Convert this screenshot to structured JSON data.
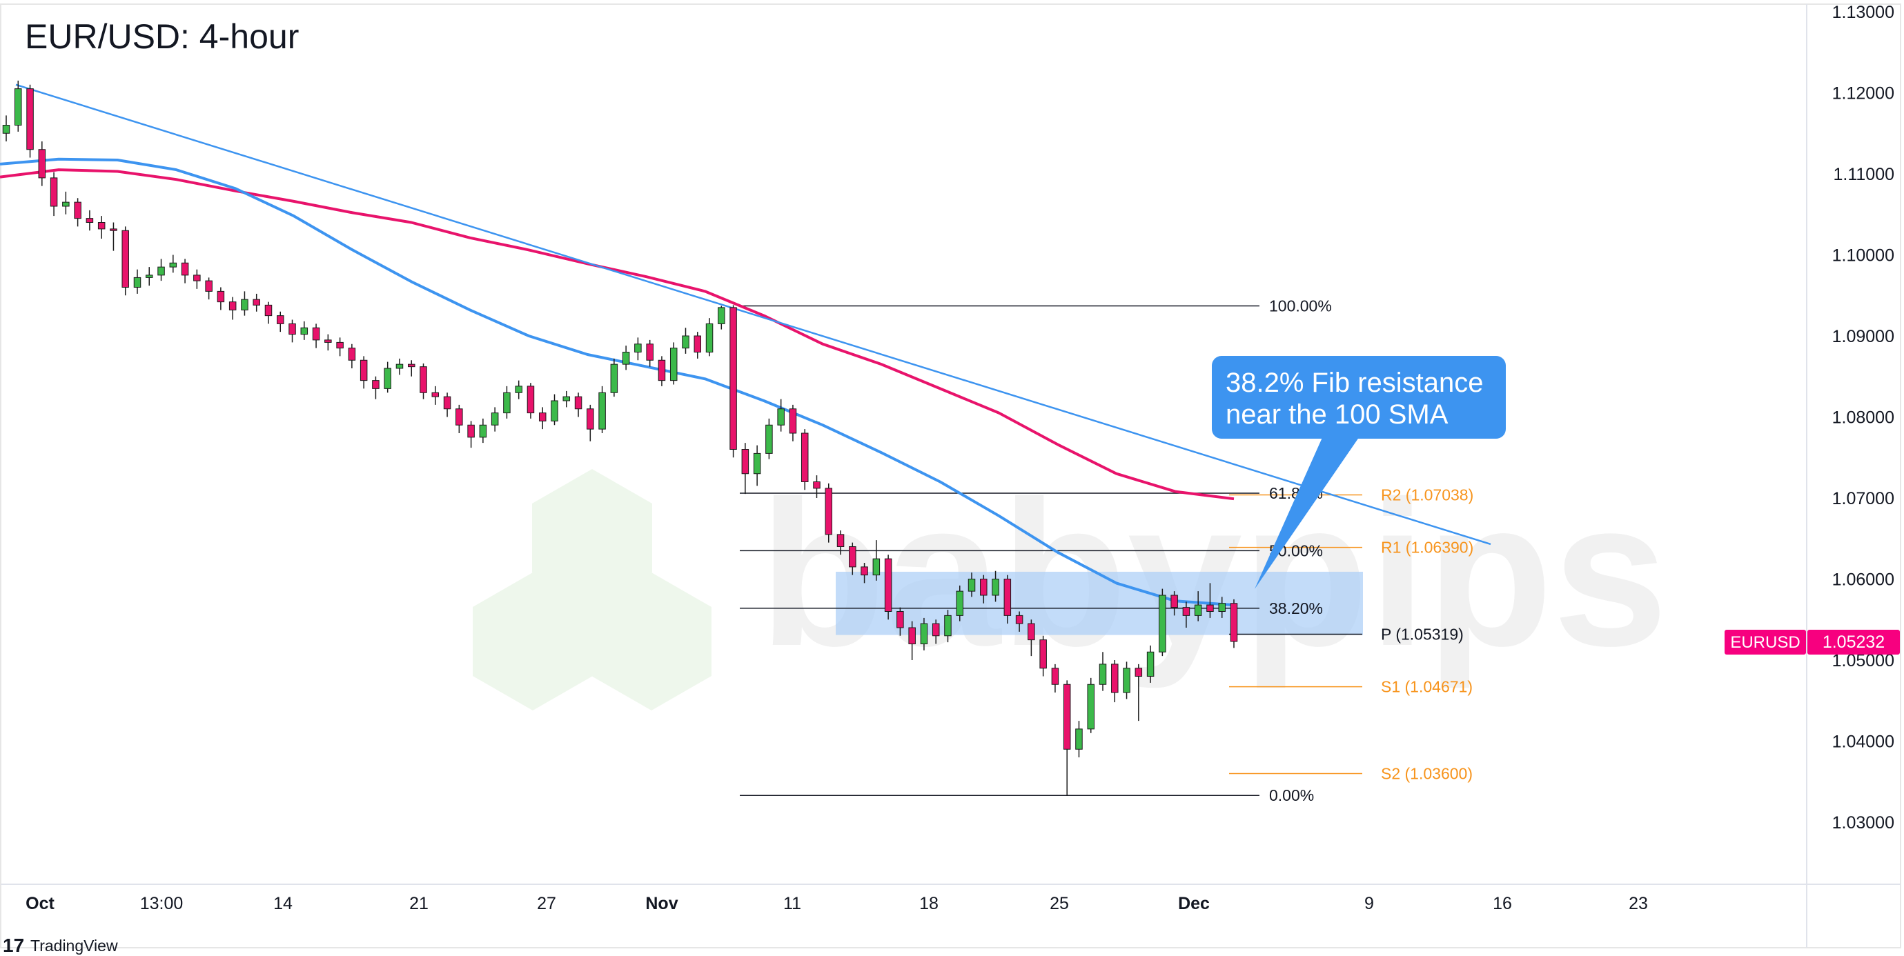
{
  "title": "EUR/USD: 4-hour",
  "watermark": "babypips",
  "branding": "TradingView",
  "chart_data": {
    "type": "candlestick",
    "symbol": "EURUSD",
    "last_price": "1.05232",
    "ylim": [
      1.025,
      1.131
    ],
    "y_ticks": [
      "1.13000",
      "1.12000",
      "1.11000",
      "1.10000",
      "1.09000",
      "1.08000",
      "1.07000",
      "1.06000",
      "1.05000",
      "1.04000",
      "1.03000"
    ],
    "x_ticks": [
      "Oct",
      "13:00",
      "14",
      "21",
      "27",
      "Nov",
      "11",
      "18",
      "25",
      "Dec",
      "9",
      "16",
      "23"
    ],
    "x_ticks_bold": [
      "Oct",
      "Nov",
      "Dec"
    ],
    "colors": {
      "up": "#3cb94a",
      "down": "#e8136b",
      "sma100": "#3d94f0",
      "sma200": "#e8136b",
      "trendline": "#3d94f0",
      "pivot": "#f7941d",
      "zone": "#a9cdf7",
      "price_label": "#f7007f"
    },
    "candles_ohlc": [
      [
        1.115,
        1.1172,
        1.114,
        1.116
      ],
      [
        1.116,
        1.1215,
        1.1152,
        1.1205
      ],
      [
        1.1205,
        1.121,
        1.112,
        1.113
      ],
      [
        1.113,
        1.114,
        1.1085,
        1.1095
      ],
      [
        1.1095,
        1.1102,
        1.1048,
        1.106
      ],
      [
        1.106,
        1.1078,
        1.105,
        1.1065
      ],
      [
        1.1065,
        1.107,
        1.1035,
        1.1045
      ],
      [
        1.1045,
        1.1055,
        1.103,
        1.104
      ],
      [
        1.104,
        1.1048,
        1.102,
        1.1032
      ],
      [
        1.1032,
        1.104,
        1.1005,
        1.103
      ],
      [
        1.103,
        1.1035,
        1.095,
        1.096
      ],
      [
        1.096,
        1.0982,
        1.0952,
        1.0972
      ],
      [
        1.0972,
        1.0985,
        1.0962,
        1.0975
      ],
      [
        1.0975,
        1.0995,
        1.0968,
        1.0985
      ],
      [
        1.0985,
        1.1,
        1.0978,
        1.099
      ],
      [
        1.099,
        1.0995,
        1.0965,
        1.0975
      ],
      [
        1.0975,
        1.0982,
        1.0958,
        1.0968
      ],
      [
        1.0968,
        1.0972,
        1.0945,
        1.0955
      ],
      [
        1.0955,
        1.096,
        1.0932,
        1.0942
      ],
      [
        1.0942,
        1.0948,
        1.092,
        1.0932
      ],
      [
        1.0932,
        1.0955,
        1.0925,
        1.0945
      ],
      [
        1.0945,
        1.0952,
        1.093,
        1.0938
      ],
      [
        1.0938,
        1.0942,
        1.0915,
        1.0925
      ],
      [
        1.0925,
        1.093,
        1.0905,
        1.0915
      ],
      [
        1.0915,
        1.092,
        1.0892,
        1.0902
      ],
      [
        1.0902,
        1.0918,
        1.0895,
        1.091
      ],
      [
        1.091,
        1.0915,
        1.0885,
        1.0895
      ],
      [
        1.0895,
        1.0902,
        1.0882,
        1.0892
      ],
      [
        1.0892,
        1.0898,
        1.0875,
        1.0885
      ],
      [
        1.0885,
        1.089,
        1.086,
        1.087
      ],
      [
        1.087,
        1.0875,
        1.0835,
        1.0845
      ],
      [
        1.0845,
        1.085,
        1.0822,
        1.0835
      ],
      [
        1.0835,
        1.0868,
        1.083,
        1.086
      ],
      [
        1.086,
        1.0872,
        1.0852,
        1.0865
      ],
      [
        1.0865,
        1.087,
        1.085,
        1.0862
      ],
      [
        1.0862,
        1.0866,
        1.0822,
        1.083
      ],
      [
        1.083,
        1.0838,
        1.0815,
        1.0825
      ],
      [
        1.0825,
        1.083,
        1.08,
        1.081
      ],
      [
        1.081,
        1.0815,
        1.078,
        1.079
      ],
      [
        1.079,
        1.0795,
        1.0762,
        1.0775
      ],
      [
        1.0775,
        1.0798,
        1.0768,
        1.079
      ],
      [
        1.079,
        1.0812,
        1.0782,
        1.0805
      ],
      [
        1.0805,
        1.0838,
        1.0798,
        1.083
      ],
      [
        1.083,
        1.0845,
        1.0822,
        1.0838
      ],
      [
        1.0838,
        1.0842,
        1.0798,
        1.0805
      ],
      [
        1.0805,
        1.0812,
        1.0785,
        1.0795
      ],
      [
        1.0795,
        1.0828,
        1.079,
        1.082
      ],
      [
        1.082,
        1.0832,
        1.0812,
        1.0825
      ],
      [
        1.0825,
        1.083,
        1.08,
        1.081
      ],
      [
        1.081,
        1.0815,
        1.077,
        1.0785
      ],
      [
        1.0785,
        1.0838,
        1.078,
        1.083
      ],
      [
        1.083,
        1.0872,
        1.0825,
        1.0865
      ],
      [
        1.0865,
        1.0888,
        1.0858,
        1.088
      ],
      [
        1.088,
        1.0898,
        1.087,
        1.089
      ],
      [
        1.089,
        1.0895,
        1.0862,
        1.087
      ],
      [
        1.087,
        1.0875,
        1.0838,
        1.0845
      ],
      [
        1.0845,
        1.0892,
        1.084,
        1.0885
      ],
      [
        1.0885,
        1.091,
        1.0878,
        1.09
      ],
      [
        1.09,
        1.0905,
        1.0872,
        1.088
      ],
      [
        1.088,
        1.0922,
        1.0875,
        1.0915
      ],
      [
        1.0915,
        1.0937,
        1.0908,
        1.0935
      ],
      [
        1.0935,
        1.0938,
        1.075,
        1.076
      ],
      [
        1.076,
        1.0768,
        1.0705,
        1.073
      ],
      [
        1.073,
        1.0765,
        1.0715,
        1.0755
      ],
      [
        1.0755,
        1.0798,
        1.0748,
        1.079
      ],
      [
        1.079,
        1.0822,
        1.0782,
        1.081
      ],
      [
        1.081,
        1.0815,
        1.077,
        1.078
      ],
      [
        1.078,
        1.0785,
        1.071,
        1.072
      ],
      [
        1.072,
        1.0728,
        1.07,
        1.0712
      ],
      [
        1.0712,
        1.0718,
        1.0645,
        1.0655
      ],
      [
        1.0655,
        1.066,
        1.063,
        1.064
      ],
      [
        1.064,
        1.0645,
        1.0605,
        1.0615
      ],
      [
        1.0615,
        1.062,
        1.0595,
        1.0605
      ],
      [
        1.0605,
        1.0648,
        1.0598,
        1.0625
      ],
      [
        1.0625,
        1.063,
        1.055,
        1.056
      ],
      [
        1.056,
        1.0565,
        1.053,
        1.054
      ],
      [
        1.054,
        1.0548,
        1.05,
        1.052
      ],
      [
        1.052,
        1.0552,
        1.0512,
        1.0545
      ],
      [
        1.0545,
        1.055,
        1.052,
        1.053
      ],
      [
        1.053,
        1.0562,
        1.0522,
        1.0555
      ],
      [
        1.0555,
        1.0592,
        1.0548,
        1.0585
      ],
      [
        1.0585,
        1.0608,
        1.0578,
        1.06
      ],
      [
        1.06,
        1.0605,
        1.057,
        1.058
      ],
      [
        1.058,
        1.061,
        1.0572,
        1.06
      ],
      [
        1.06,
        1.0605,
        1.0545,
        1.0555
      ],
      [
        1.0555,
        1.056,
        1.0535,
        1.0545
      ],
      [
        1.0545,
        1.055,
        1.0505,
        1.0525
      ],
      [
        1.0525,
        1.053,
        1.048,
        1.049
      ],
      [
        1.049,
        1.0495,
        1.046,
        1.047
      ],
      [
        1.047,
        1.0475,
        1.0333,
        1.039
      ],
      [
        1.039,
        1.0425,
        1.038,
        1.0415
      ],
      [
        1.0415,
        1.0478,
        1.041,
        1.047
      ],
      [
        1.047,
        1.051,
        1.0462,
        1.0495
      ],
      [
        1.0495,
        1.05,
        1.0448,
        1.046
      ],
      [
        1.046,
        1.0498,
        1.0452,
        1.049
      ],
      [
        1.049,
        1.0495,
        1.0425,
        1.048
      ],
      [
        1.048,
        1.0518,
        1.0472,
        1.051
      ],
      [
        1.051,
        1.0588,
        1.0505,
        1.058
      ],
      [
        1.058,
        1.0585,
        1.0555,
        1.0565
      ],
      [
        1.0565,
        1.0572,
        1.054,
        1.0555
      ],
      [
        1.0555,
        1.0585,
        1.0548,
        1.0568
      ],
      [
        1.0568,
        1.0595,
        1.0552,
        1.056
      ],
      [
        1.056,
        1.0578,
        1.0552,
        1.057
      ],
      [
        1.057,
        1.0575,
        1.0515,
        1.0523
      ]
    ],
    "sma100": [
      1.1112,
      1.1118,
      1.1117,
      1.1105,
      1.1082,
      1.1048,
      1.1006,
      1.0967,
      1.0932,
      1.09,
      1.0877,
      1.0862,
      1.0847,
      1.082,
      1.079,
      1.0756,
      1.072,
      1.0678,
      1.0633,
      1.0595,
      1.0573,
      1.0568
    ],
    "sma200": [
      1.1096,
      1.1105,
      1.1103,
      1.1093,
      1.1079,
      1.1066,
      1.1052,
      1.104,
      1.1021,
      1.1006,
      1.0989,
      1.0973,
      1.0955,
      1.0925,
      1.089,
      1.0865,
      1.0835,
      1.0805,
      1.0766,
      1.073,
      1.0708,
      1.0699
    ],
    "trendline": {
      "start_price": 1.121,
      "end_price": 1.0643
    },
    "resistance_zone": [
      1.0531,
      1.0609
    ],
    "fib_levels": [
      {
        "label": "100.00%",
        "price": 1.0937
      },
      {
        "label": "61.80%",
        "price": 1.0706
      },
      {
        "label": "50.00%",
        "price": 1.0635
      },
      {
        "label": "38.20%",
        "price": 1.0564
      },
      {
        "label": "0.00%",
        "price": 1.0333
      }
    ],
    "pivots": [
      {
        "label": "R2 (1.07038)",
        "price": 1.07038,
        "color": "#f7941d"
      },
      {
        "label": "R1 (1.06390)",
        "price": 1.0639,
        "color": "#f7941d"
      },
      {
        "label": "P (1.05319)",
        "price": 1.05319,
        "color": "#131722"
      },
      {
        "label": "S1 (1.04671)",
        "price": 1.04671,
        "color": "#f7941d"
      },
      {
        "label": "S2 (1.03600)",
        "price": 1.036,
        "color": "#f7941d"
      }
    ],
    "annotation": {
      "line1": "38.2% Fib resistance",
      "line2": "near the 100 SMA"
    }
  }
}
